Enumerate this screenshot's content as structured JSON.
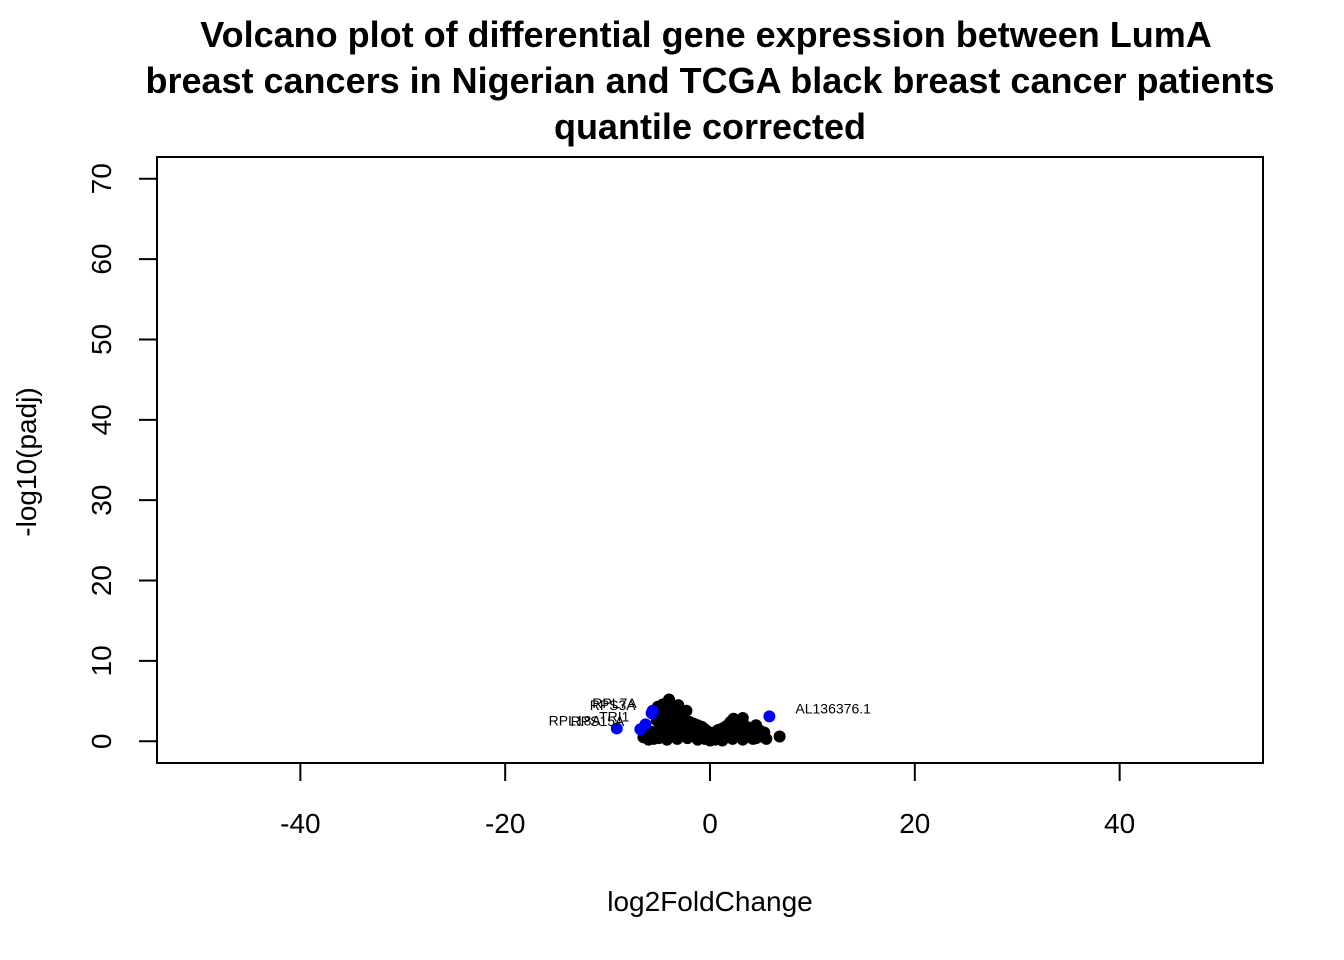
{
  "chart_data": {
    "type": "scatter",
    "title_lines": [
      "Volcano plot of differential gene expression between LumA",
      "breast cancers in Nigerian and TCGA black breast cancer patients",
      "quantile corrected"
    ],
    "xlabel": "log2FoldChange",
    "ylabel": "-log10(padj)",
    "xlim": [
      -54,
      54
    ],
    "ylim": [
      -2.7,
      72.7
    ],
    "x_ticks": [
      -40,
      -20,
      0,
      20,
      40
    ],
    "x_tick_labels": [
      "-40",
      "-20",
      "0",
      "20",
      "40"
    ],
    "y_ticks": [
      0,
      10,
      20,
      30,
      40,
      50,
      60,
      70
    ],
    "y_tick_labels": [
      "0",
      "10",
      "20",
      "30",
      "40",
      "50",
      "60",
      "70"
    ],
    "grid": false,
    "colors": {
      "background": "#000000",
      "highlight": "#0000ff"
    },
    "background_points": [
      [
        -4,
        5.2
      ],
      [
        -4.6,
        4.6
      ],
      [
        -5.1,
        4.3
      ],
      [
        -3.1,
        4.5
      ],
      [
        -2.3,
        3.8
      ],
      [
        -3.6,
        3.9
      ],
      [
        -5.5,
        3.5
      ],
      [
        -4.2,
        3.4
      ],
      [
        -2.9,
        3.2
      ],
      [
        -3.3,
        2.9
      ],
      [
        -4.7,
        2.8
      ],
      [
        -5.2,
        2.6
      ],
      [
        -3.9,
        2.5
      ],
      [
        -2.6,
        2.7
      ],
      [
        -2,
        2.4
      ],
      [
        -1.6,
        2.2
      ],
      [
        -1.2,
        2.0
      ],
      [
        -0.8,
        1.8
      ],
      [
        -0.5,
        1.5
      ],
      [
        -0.2,
        1.2
      ],
      [
        0.1,
        0.9
      ],
      [
        0.4,
        1.1
      ],
      [
        0.8,
        1.4
      ],
      [
        1.2,
        1.6
      ],
      [
        1.6,
        1.9
      ],
      [
        2.0,
        2.4
      ],
      [
        2.3,
        2.8
      ],
      [
        2.8,
        2.2
      ],
      [
        3.2,
        2.9
      ],
      [
        3.6,
        1.8
      ],
      [
        4.0,
        1.5
      ],
      [
        4.5,
        2.0
      ],
      [
        4.9,
        1.3
      ],
      [
        5.3,
        1.1
      ],
      [
        6.8,
        0.6
      ],
      [
        -6.5,
        0.5
      ],
      [
        -6.2,
        1.0
      ],
      [
        -5.8,
        1.2
      ],
      [
        -5.5,
        0.8
      ],
      [
        -5.0,
        1.5
      ],
      [
        -4.5,
        1.8
      ],
      [
        -4.0,
        2.1
      ],
      [
        -3.5,
        1.7
      ],
      [
        -3.0,
        1.4
      ],
      [
        -2.5,
        1.1
      ],
      [
        -2.0,
        0.9
      ],
      [
        -1.5,
        0.7
      ],
      [
        -1.0,
        0.5
      ],
      [
        -0.5,
        0.3
      ],
      [
        0.0,
        0.1
      ],
      [
        0.5,
        0.2
      ],
      [
        1.0,
        0.4
      ],
      [
        1.5,
        0.6
      ],
      [
        2.0,
        0.8
      ],
      [
        2.5,
        1.0
      ],
      [
        3.0,
        0.9
      ],
      [
        3.5,
        0.7
      ],
      [
        4.0,
        0.5
      ],
      [
        4.5,
        0.4
      ],
      [
        5.0,
        0.6
      ],
      [
        -5.5,
        0.3
      ],
      [
        -5.0,
        0.4
      ],
      [
        -4.5,
        0.5
      ],
      [
        -4.0,
        0.6
      ],
      [
        -3.5,
        0.8
      ],
      [
        -3.0,
        0.9
      ],
      [
        -2.5,
        1.3
      ],
      [
        -2.0,
        1.6
      ],
      [
        -1.5,
        1.4
      ],
      [
        -1.0,
        1.2
      ],
      [
        -0.5,
        0.9
      ],
      [
        0.5,
        0.7
      ],
      [
        1.0,
        0.9
      ],
      [
        1.5,
        1.1
      ],
      [
        2.0,
        1.3
      ],
      [
        2.5,
        1.6
      ],
      [
        3.0,
        1.4
      ],
      [
        3.5,
        1.2
      ],
      [
        4.0,
        1.0
      ],
      [
        4.5,
        0.8
      ],
      [
        -4.2,
        0.2
      ],
      [
        -3.2,
        0.3
      ],
      [
        -2.2,
        0.4
      ],
      [
        -1.2,
        0.2
      ],
      [
        1.2,
        0.1
      ],
      [
        2.2,
        0.3
      ],
      [
        3.2,
        0.2
      ],
      [
        4.2,
        0.3
      ],
      [
        -6.0,
        0.2
      ],
      [
        5.5,
        0.3
      ],
      [
        -3.8,
        2.3
      ],
      [
        -4.3,
        2.6
      ],
      [
        -2.7,
        2.0
      ],
      [
        -1.8,
        1.9
      ],
      [
        0.3,
        0.5
      ],
      [
        -0.3,
        0.6
      ],
      [
        -1.3,
        0.9
      ],
      [
        1.8,
        1.5
      ],
      [
        2.6,
        2.1
      ],
      [
        3.3,
        1.9
      ],
      [
        -4.8,
        3.0
      ],
      [
        -3.4,
        3.1
      ],
      [
        -2.4,
        2.6
      ],
      [
        0.7,
        1.2
      ],
      [
        1.4,
        1.3
      ]
    ],
    "highlighted_points": [
      {
        "label": "RPL7A",
        "x": -5.6,
        "y": 3.8
      },
      {
        "label": "RPS3A",
        "x": -5.7,
        "y": 3.5
      },
      {
        "label": "TRI1",
        "x": -6.3,
        "y": 2.1
      },
      {
        "label": "RPS15A",
        "x": -6.8,
        "y": 1.5
      },
      {
        "label": "RPL18A",
        "x": -9.1,
        "y": 1.6
      },
      {
        "label": "AL136376.1",
        "x": 5.8,
        "y": 3.1
      }
    ]
  }
}
